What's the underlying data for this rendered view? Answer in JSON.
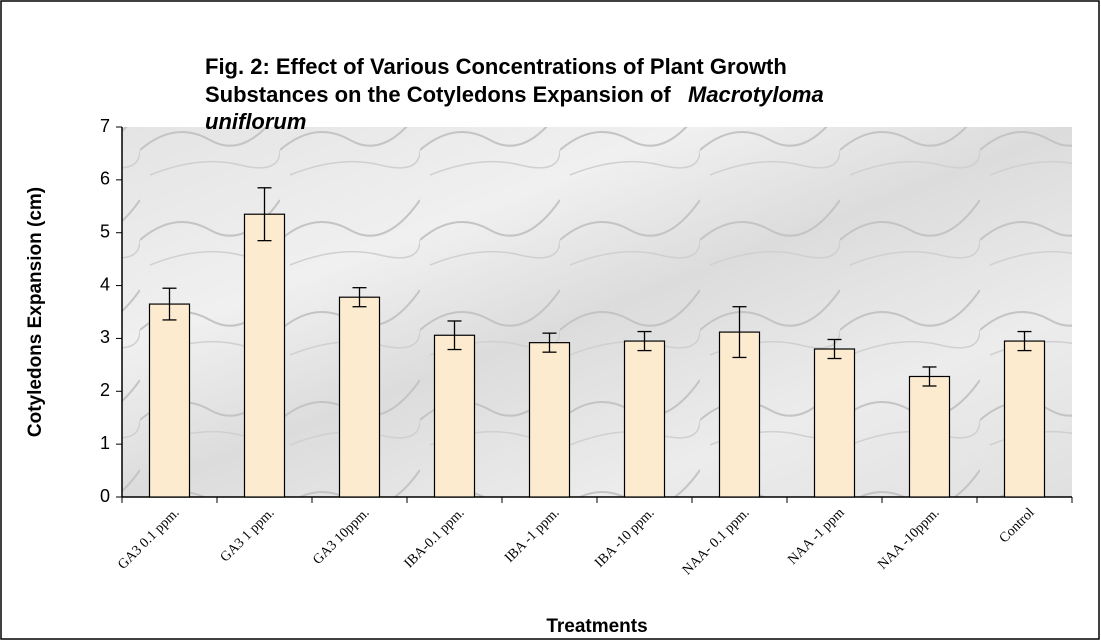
{
  "chart_data": {
    "type": "bar",
    "title": [
      "Fig. 2: Effect of Various Concentrations of Plant Growth",
      "Substances on the Cotyledons Expansion of",
      "Macrotyloma",
      "uniflorum"
    ],
    "xlabel": "Treatments",
    "ylabel": "Cotyledons Expansion (cm)",
    "categories": [
      "GA3 0.1 ppm.",
      "GA3 1 ppm.",
      "GA3 10ppm.",
      "IBA-0.1 ppm.",
      "IBA -1 ppm.",
      "IBA -10 ppm.",
      "NAA- 0.1 ppm.",
      "NAA -1 ppm",
      "NAA -10ppm.",
      "Control"
    ],
    "values": [
      3.65,
      5.35,
      3.78,
      3.06,
      2.92,
      2.95,
      3.12,
      2.8,
      2.28,
      2.95
    ],
    "errors": [
      0.3,
      0.5,
      0.18,
      0.27,
      0.18,
      0.18,
      0.48,
      0.18,
      0.18,
      0.18
    ],
    "color": "#fdebd0",
    "ylim": [
      0,
      7
    ],
    "yticks": [
      0,
      1,
      2,
      3,
      4,
      5,
      6,
      7
    ]
  }
}
